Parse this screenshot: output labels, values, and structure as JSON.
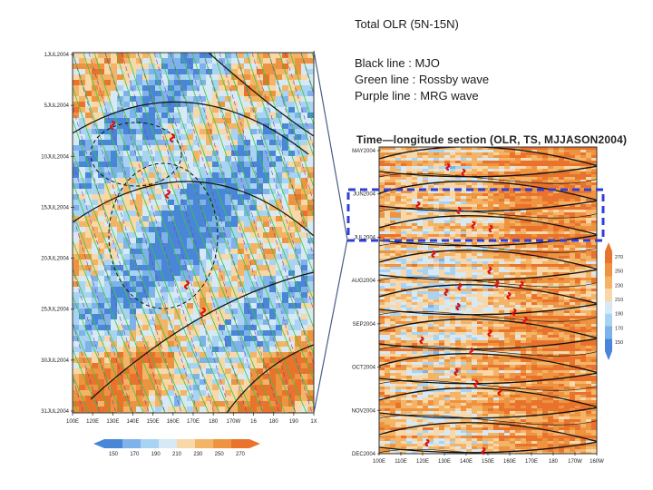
{
  "header": {
    "title": "Total OLR  (5N-15N)",
    "legend_lines": [
      "Black line : MJO",
      "Green line : Rossby wave",
      "Purple line : MRG wave"
    ]
  },
  "colors": {
    "mjo": "#111111",
    "rossby": "#33cc33",
    "mrg": "#7a3fb0",
    "box": "#2f3fd8",
    "cyclone": "#dd1111"
  },
  "chart_data": [
    {
      "type": "heatmap",
      "title": "",
      "xlabel": "",
      "ylabel": "",
      "x_ticks": [
        "100E",
        "120E",
        "130E",
        "140E",
        "150E",
        "160E",
        "170E",
        "180",
        "170W",
        "16",
        "180",
        "190",
        "1X"
      ],
      "y_ticks": [
        "1JUL2004",
        "5JUL2004",
        "10JUL2004",
        "15JUL2004",
        "20JUL2004",
        "25JUL2004",
        "30JUL2004",
        "31JUL2004"
      ],
      "colorbar_ticks": [
        "150",
        "170",
        "190",
        "210",
        "230",
        "250",
        "270"
      ],
      "grid": false
    },
    {
      "type": "heatmap",
      "title": "Time—longitude section  (OLR, TS, MJJASON2004)",
      "xlabel": "",
      "ylabel": "",
      "x_ticks": [
        "100E",
        "110E",
        "120E",
        "130E",
        "140E",
        "150E",
        "160E",
        "170E",
        "180",
        "170W",
        "160W"
      ],
      "y_ticks": [
        "MAY2004",
        "JUN2004",
        "JUL2004",
        "AUG2004",
        "SEP2004",
        "OCT2004",
        "NOV2004",
        "DEC2004"
      ],
      "colorbar_ticks": [
        "270",
        "250",
        "230",
        "210",
        "190",
        "170",
        "150"
      ],
      "grid": false
    }
  ]
}
